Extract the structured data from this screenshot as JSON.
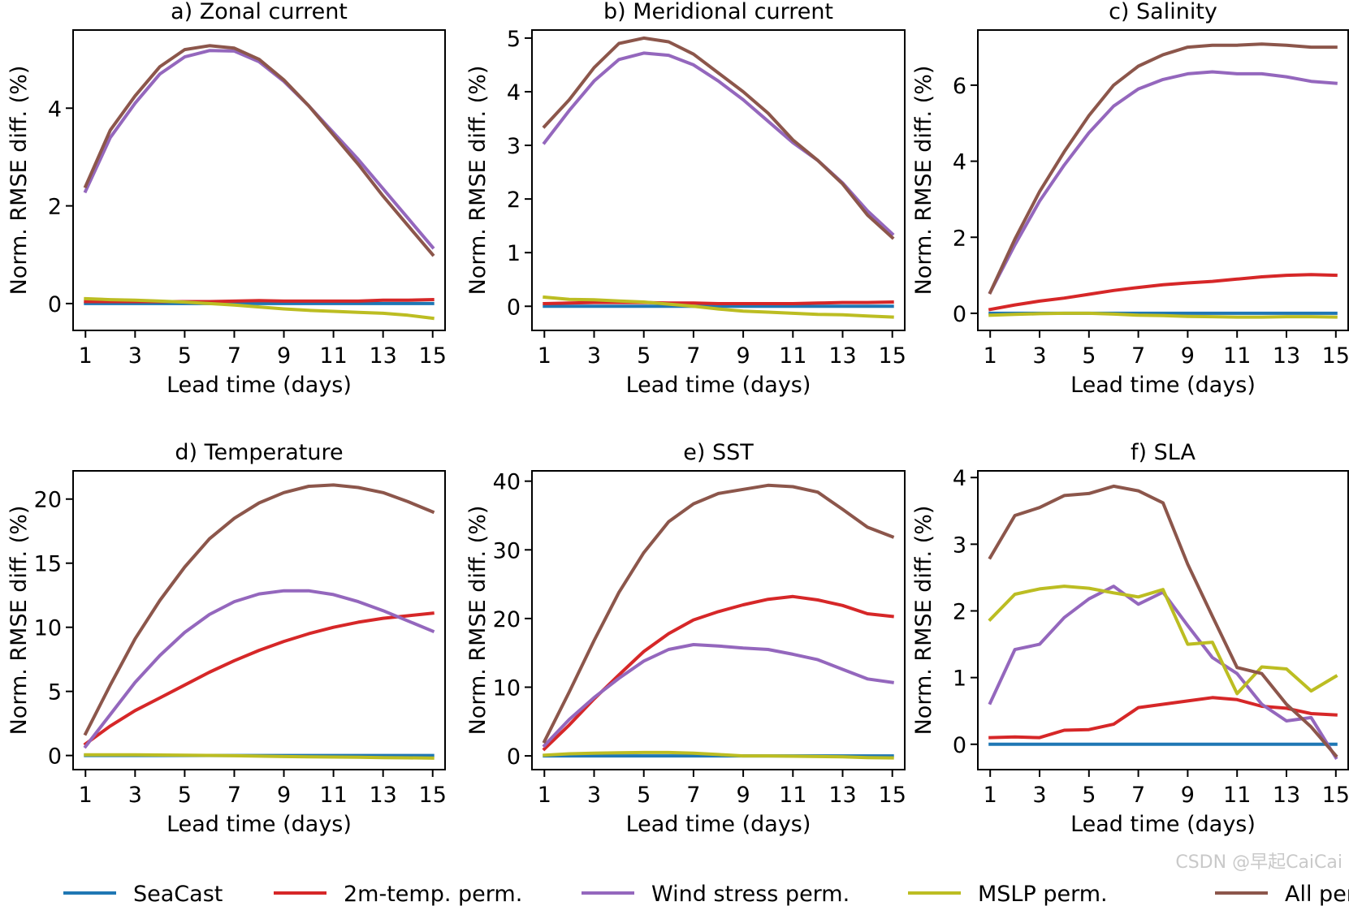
{
  "legend": [
    {
      "name": "SeaCast",
      "color": "#1f77b4"
    },
    {
      "name": "2m-temp. perm.",
      "color": "#d62728"
    },
    {
      "name": "Wind stress perm.",
      "color": "#9467bd"
    },
    {
      "name": "MSLP perm.",
      "color": "#bcbd22"
    },
    {
      "name": "All perm.",
      "color": "#8c564b"
    }
  ],
  "watermark": "CSDN @早起CaiCai",
  "chart_data": [
    {
      "type": "line",
      "title": "a) Zonal current",
      "xlabel": "Lead time (days)",
      "ylabel": "Norm. RMSE diff. (%)",
      "xlim": [
        0.5,
        15.5
      ],
      "ylim": [
        -0.55,
        5.6
      ],
      "xticks": [
        1,
        3,
        5,
        7,
        9,
        11,
        13,
        15
      ],
      "yticks": [
        0,
        2,
        4
      ],
      "x": [
        1,
        2,
        3,
        4,
        5,
        6,
        7,
        8,
        9,
        10,
        11,
        12,
        13,
        14,
        15
      ],
      "series": [
        {
          "name": "SeaCast",
          "values": [
            0,
            0,
            0,
            0,
            0,
            0,
            0,
            0,
            0,
            0,
            0,
            0,
            0,
            0,
            0
          ]
        },
        {
          "name": "2m-temp. perm.",
          "values": [
            0.04,
            0.04,
            0.04,
            0.04,
            0.04,
            0.04,
            0.05,
            0.06,
            0.05,
            0.05,
            0.05,
            0.05,
            0.07,
            0.07,
            0.08
          ]
        },
        {
          "name": "Wind stress perm.",
          "values": [
            2.3,
            3.4,
            4.1,
            4.7,
            5.05,
            5.18,
            5.17,
            4.95,
            4.55,
            4.05,
            3.5,
            2.95,
            2.35,
            1.75,
            1.15
          ]
        },
        {
          "name": "MSLP perm.",
          "values": [
            0.1,
            0.08,
            0.07,
            0.05,
            0.03,
            0.0,
            -0.03,
            -0.07,
            -0.11,
            -0.14,
            -0.16,
            -0.18,
            -0.2,
            -0.24,
            -0.3
          ]
        },
        {
          "name": "All perm.",
          "values": [
            2.4,
            3.55,
            4.25,
            4.85,
            5.2,
            5.28,
            5.23,
            5.0,
            4.58,
            4.05,
            3.45,
            2.85,
            2.2,
            1.6,
            1.0
          ]
        }
      ]
    },
    {
      "type": "line",
      "title": "b) Meridional current",
      "xlabel": "Lead time (days)",
      "ylabel": "Norm. RMSE diff. (%)",
      "xlim": [
        0.5,
        15.5
      ],
      "ylim": [
        -0.45,
        5.15
      ],
      "xticks": [
        1,
        3,
        5,
        7,
        9,
        11,
        13,
        15
      ],
      "yticks": [
        0,
        1,
        2,
        3,
        4,
        5
      ],
      "x": [
        1,
        2,
        3,
        4,
        5,
        6,
        7,
        8,
        9,
        10,
        11,
        12,
        13,
        14,
        15
      ],
      "series": [
        {
          "name": "SeaCast",
          "values": [
            0,
            0,
            0,
            0,
            0,
            0,
            0,
            0,
            0,
            0,
            0,
            0,
            0,
            0,
            0
          ]
        },
        {
          "name": "2m-temp. perm.",
          "values": [
            0.05,
            0.06,
            0.07,
            0.07,
            0.07,
            0.06,
            0.06,
            0.05,
            0.05,
            0.05,
            0.05,
            0.06,
            0.07,
            0.07,
            0.08
          ]
        },
        {
          "name": "Wind stress perm.",
          "values": [
            3.05,
            3.65,
            4.2,
            4.6,
            4.72,
            4.68,
            4.5,
            4.2,
            3.85,
            3.45,
            3.05,
            2.72,
            2.3,
            1.78,
            1.35
          ]
        },
        {
          "name": "MSLP perm.",
          "values": [
            0.17,
            0.13,
            0.12,
            0.1,
            0.08,
            0.04,
            0.0,
            -0.05,
            -0.09,
            -0.11,
            -0.13,
            -0.15,
            -0.16,
            -0.18,
            -0.2
          ]
        },
        {
          "name": "All perm.",
          "values": [
            3.35,
            3.85,
            4.45,
            4.9,
            5.0,
            4.93,
            4.7,
            4.35,
            4.0,
            3.6,
            3.1,
            2.72,
            2.28,
            1.7,
            1.28
          ]
        }
      ]
    },
    {
      "type": "line",
      "title": "c) Salinity",
      "xlabel": "Lead time (days)",
      "ylabel": "Norm. RMSE diff. (%)",
      "xlim": [
        0.5,
        15.5
      ],
      "ylim": [
        -0.45,
        7.45
      ],
      "xticks": [
        1,
        3,
        5,
        7,
        9,
        11,
        13,
        15
      ],
      "yticks": [
        0,
        2,
        4,
        6
      ],
      "x": [
        1,
        2,
        3,
        4,
        5,
        6,
        7,
        8,
        9,
        10,
        11,
        12,
        13,
        14,
        15
      ],
      "series": [
        {
          "name": "SeaCast",
          "values": [
            0,
            0,
            0,
            0,
            0,
            0,
            0,
            0,
            0,
            0,
            0,
            0,
            0,
            0,
            0
          ]
        },
        {
          "name": "2m-temp. perm.",
          "values": [
            0.1,
            0.22,
            0.32,
            0.4,
            0.5,
            0.6,
            0.68,
            0.75,
            0.8,
            0.84,
            0.9,
            0.96,
            1.0,
            1.02,
            1.0
          ]
        },
        {
          "name": "Wind stress perm.",
          "values": [
            0.55,
            1.8,
            2.95,
            3.9,
            4.75,
            5.45,
            5.9,
            6.15,
            6.3,
            6.35,
            6.3,
            6.3,
            6.22,
            6.1,
            6.05
          ]
        },
        {
          "name": "MSLP perm.",
          "values": [
            -0.05,
            -0.03,
            -0.01,
            0.0,
            0.0,
            -0.02,
            -0.05,
            -0.06,
            -0.08,
            -0.09,
            -0.1,
            -0.1,
            -0.09,
            -0.09,
            -0.1
          ]
        },
        {
          "name": "All perm.",
          "values": [
            0.55,
            1.95,
            3.2,
            4.25,
            5.2,
            6.0,
            6.5,
            6.8,
            7.0,
            7.05,
            7.05,
            7.08,
            7.05,
            7.0,
            7.0
          ]
        }
      ]
    },
    {
      "type": "line",
      "title": "d) Temperature",
      "xlabel": "Lead time (days)",
      "ylabel": "Norm. RMSE diff. (%)",
      "xlim": [
        0.5,
        15.5
      ],
      "ylim": [
        -1.1,
        22.2
      ],
      "xticks": [
        1,
        3,
        5,
        7,
        9,
        11,
        13,
        15
      ],
      "yticks": [
        0,
        5,
        10,
        15,
        20
      ],
      "x": [
        1,
        2,
        3,
        4,
        5,
        6,
        7,
        8,
        9,
        10,
        11,
        12,
        13,
        14,
        15
      ],
      "series": [
        {
          "name": "SeaCast",
          "values": [
            0,
            0,
            0,
            0,
            0,
            0,
            0,
            0,
            0,
            0,
            0,
            0,
            0,
            0,
            0
          ]
        },
        {
          "name": "2m-temp. perm.",
          "values": [
            0.9,
            2.3,
            3.5,
            4.5,
            5.5,
            6.5,
            7.4,
            8.2,
            8.9,
            9.5,
            10.0,
            10.4,
            10.7,
            10.9,
            11.1
          ]
        },
        {
          "name": "Wind stress perm.",
          "values": [
            0.7,
            3.2,
            5.7,
            7.8,
            9.6,
            11.0,
            12.0,
            12.6,
            12.85,
            12.85,
            12.55,
            12.0,
            11.3,
            10.5,
            9.7
          ]
        },
        {
          "name": "MSLP perm.",
          "values": [
            0.05,
            0.05,
            0.05,
            0.04,
            0.03,
            0.01,
            -0.02,
            -0.05,
            -0.08,
            -0.1,
            -0.12,
            -0.14,
            -0.16,
            -0.18,
            -0.2
          ]
        },
        {
          "name": "All perm.",
          "values": [
            1.7,
            5.5,
            9.1,
            12.1,
            14.7,
            16.9,
            18.5,
            19.7,
            20.5,
            21.0,
            21.1,
            20.9,
            20.5,
            19.8,
            19.0
          ]
        }
      ]
    },
    {
      "type": "line",
      "title": "e) SST",
      "xlabel": "Lead time (days)",
      "ylabel": "Norm. RMSE diff. (%)",
      "xlim": [
        0.5,
        15.5
      ],
      "ylim": [
        -2.0,
        41.5
      ],
      "xticks": [
        1,
        3,
        5,
        7,
        9,
        11,
        13,
        15
      ],
      "yticks": [
        0,
        10,
        20,
        30,
        40
      ],
      "x": [
        1,
        2,
        3,
        4,
        5,
        6,
        7,
        8,
        9,
        10,
        11,
        12,
        13,
        14,
        15
      ],
      "series": [
        {
          "name": "SeaCast",
          "values": [
            0,
            0,
            0,
            0,
            0,
            0,
            0,
            0,
            0,
            0,
            0,
            0,
            0,
            0,
            0
          ]
        },
        {
          "name": "2m-temp. perm.",
          "values": [
            1.0,
            4.5,
            8.3,
            11.8,
            15.2,
            17.8,
            19.8,
            21.0,
            22.0,
            22.8,
            23.2,
            22.7,
            21.9,
            20.7,
            20.3
          ]
        },
        {
          "name": "Wind stress perm.",
          "values": [
            1.5,
            5.3,
            8.5,
            11.3,
            13.8,
            15.5,
            16.2,
            16.0,
            15.7,
            15.5,
            14.8,
            14.0,
            12.6,
            11.2,
            10.7
          ]
        },
        {
          "name": "MSLP perm.",
          "values": [
            0.1,
            0.3,
            0.4,
            0.45,
            0.5,
            0.5,
            0.4,
            0.2,
            0.0,
            0.0,
            -0.05,
            -0.1,
            -0.15,
            -0.25,
            -0.3
          ]
        },
        {
          "name": "All perm.",
          "values": [
            2.1,
            9.3,
            16.8,
            23.8,
            29.6,
            34.1,
            36.7,
            38.2,
            38.8,
            39.4,
            39.2,
            38.4,
            35.9,
            33.3,
            31.9
          ]
        }
      ]
    },
    {
      "type": "line",
      "title": "f) SLA",
      "xlabel": "Lead time (days)",
      "ylabel": "Norm. RMSE diff. (%)",
      "xlim": [
        0.5,
        15.5
      ],
      "ylim": [
        -0.38,
        4.1
      ],
      "xticks": [
        1,
        3,
        5,
        7,
        9,
        11,
        13,
        15
      ],
      "yticks": [
        0,
        1,
        2,
        3,
        4
      ],
      "x": [
        1,
        2,
        3,
        4,
        5,
        6,
        7,
        8,
        9,
        10,
        11,
        12,
        13,
        14,
        15
      ],
      "series": [
        {
          "name": "SeaCast",
          "values": [
            0,
            0,
            0,
            0,
            0,
            0,
            0,
            0,
            0,
            0,
            0,
            0,
            0,
            0,
            0
          ]
        },
        {
          "name": "2m-temp. perm.",
          "values": [
            0.1,
            0.11,
            0.1,
            0.21,
            0.22,
            0.3,
            0.55,
            0.6,
            0.65,
            0.7,
            0.67,
            0.57,
            0.54,
            0.46,
            0.44
          ]
        },
        {
          "name": "Wind stress perm.",
          "values": [
            0.62,
            1.42,
            1.5,
            1.9,
            2.18,
            2.37,
            2.1,
            2.28,
            1.78,
            1.3,
            1.06,
            0.6,
            0.35,
            0.4,
            -0.2
          ]
        },
        {
          "name": "MSLP perm.",
          "values": [
            1.87,
            2.25,
            2.33,
            2.37,
            2.34,
            2.27,
            2.21,
            2.32,
            1.5,
            1.53,
            0.76,
            1.16,
            1.13,
            0.8,
            1.02
          ]
        },
        {
          "name": "All perm.",
          "values": [
            2.8,
            3.43,
            3.55,
            3.73,
            3.76,
            3.87,
            3.8,
            3.62,
            2.7,
            1.92,
            1.15,
            1.06,
            0.6,
            0.26,
            -0.17
          ]
        }
      ]
    }
  ]
}
